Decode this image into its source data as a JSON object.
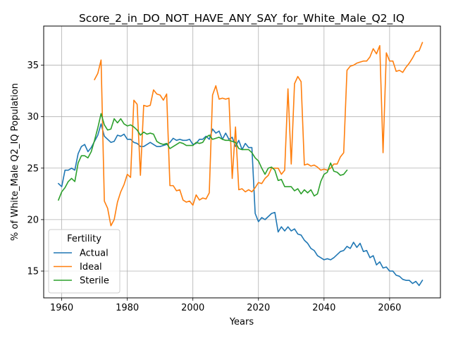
{
  "chart_data": {
    "type": "line",
    "title": "Score_2_in_DO_NOT_HAVE_ANY_SAY_for_White_Male_Q2_IQ",
    "xlabel": "Years",
    "ylabel": "% of White_Male Q2_IQ Population",
    "xlim": [
      1954.5,
      2075.5
    ],
    "ylim": [
      12.4,
      38.8
    ],
    "xticks": [
      1960,
      1980,
      2000,
      2020,
      2040,
      2060
    ],
    "yticks": [
      15,
      20,
      25,
      30,
      35
    ],
    "grid": true,
    "legend": {
      "title": "Fertility",
      "placement": "lower-left"
    },
    "series": [
      {
        "name": "Actual",
        "color": "#1f77b4",
        "x": [
          1959,
          1960,
          1961,
          1962,
          1963,
          1964,
          1965,
          1966,
          1967,
          1968,
          1969,
          1970,
          1971,
          1972,
          1973,
          1974,
          1975,
          1976,
          1977,
          1978,
          1979,
          1980,
          1981,
          1982,
          1983,
          1984,
          1985,
          1986,
          1987,
          1988,
          1989,
          1990,
          1991,
          1992,
          1993,
          1994,
          1995,
          1996,
          1997,
          1998,
          1999,
          2000,
          2001,
          2002,
          2003,
          2004,
          2005,
          2006,
          2007,
          2008,
          2009,
          2010,
          2011,
          2012,
          2013,
          2014,
          2015,
          2016,
          2017,
          2018,
          2019,
          2020,
          2021,
          2022,
          2023,
          2024,
          2025,
          2026,
          2027,
          2028,
          2029,
          2030,
          2031,
          2032,
          2033,
          2034,
          2035,
          2036,
          2037,
          2038,
          2039,
          2040,
          2041,
          2042,
          2043,
          2044,
          2045,
          2046,
          2047,
          2048,
          2049,
          2050,
          2051,
          2052,
          2053,
          2054,
          2055,
          2056,
          2057,
          2058,
          2059,
          2060,
          2061,
          2062,
          2063,
          2064,
          2065,
          2066,
          2067,
          2068,
          2069,
          2070
        ],
        "y": [
          23.5,
          23.2,
          24.8,
          24.8,
          25.0,
          24.8,
          26.4,
          27.1,
          27.3,
          26.6,
          27.0,
          27.6,
          28.2,
          29.3,
          28.1,
          27.8,
          27.5,
          27.6,
          28.2,
          28.1,
          28.3,
          27.8,
          27.8,
          27.5,
          27.4,
          27.1,
          27.1,
          27.3,
          27.5,
          27.3,
          27.1,
          27.1,
          27.2,
          27.3,
          27.5,
          27.9,
          27.7,
          27.8,
          27.7,
          27.7,
          27.8,
          27.3,
          27.4,
          27.8,
          27.8,
          28.1,
          27.8,
          28.8,
          28.4,
          28.6,
          27.8,
          28.4,
          27.8,
          28.0,
          27.1,
          27.7,
          26.8,
          27.4,
          27.0,
          27.0,
          20.6,
          19.8,
          20.2,
          20.0,
          20.3,
          20.6,
          20.7,
          18.8,
          19.3,
          18.9,
          19.3,
          18.9,
          19.1,
          18.6,
          18.5,
          18.0,
          17.7,
          17.2,
          17.0,
          16.5,
          16.3,
          16.1,
          16.2,
          16.1,
          16.3,
          16.6,
          16.9,
          17.0,
          17.4,
          17.2,
          17.8,
          17.3,
          17.7,
          16.9,
          17.0,
          16.3,
          16.5,
          15.6,
          15.9,
          15.3,
          15.4,
          15.0,
          15.0,
          14.6,
          14.5,
          14.2,
          14.1,
          14.1,
          13.8,
          14.0,
          13.6,
          14.1
        ]
      },
      {
        "name": "Ideal",
        "color": "#ff7f0e",
        "x": [
          1970,
          1971,
          1972,
          1973,
          1974,
          1975,
          1976,
          1977,
          1978,
          1979,
          1980,
          1981,
          1982,
          1983,
          1984,
          1985,
          1986,
          1987,
          1988,
          1989,
          1990,
          1991,
          1992,
          1993,
          1994,
          1995,
          1996,
          1997,
          1998,
          1999,
          2000,
          2001,
          2002,
          2003,
          2004,
          2005,
          2006,
          2007,
          2008,
          2009,
          2010,
          2011,
          2012,
          2013,
          2014,
          2015,
          2016,
          2017,
          2018,
          2019,
          2020,
          2021,
          2022,
          2023,
          2024,
          2025,
          2026,
          2027,
          2028,
          2029,
          2030,
          2031,
          2032,
          2033,
          2034,
          2035,
          2036,
          2037,
          2038,
          2039,
          2040,
          2041,
          2042,
          2043,
          2044,
          2045,
          2046,
          2047,
          2048,
          2049,
          2050,
          2051,
          2052,
          2053,
          2054,
          2055,
          2056,
          2057,
          2058,
          2059,
          2060,
          2061,
          2062,
          2063,
          2064,
          2065,
          2066,
          2067,
          2068,
          2069,
          2070
        ],
        "y": [
          33.6,
          34.2,
          35.5,
          21.8,
          21.1,
          19.4,
          20.0,
          21.7,
          22.7,
          23.4,
          24.4,
          24.1,
          31.6,
          31.2,
          24.3,
          31.1,
          31.0,
          31.1,
          32.6,
          32.2,
          32.1,
          31.6,
          32.2,
          23.3,
          23.3,
          22.8,
          22.9,
          21.9,
          21.7,
          21.8,
          21.4,
          22.4,
          21.9,
          22.1,
          22.0,
          22.6,
          32.1,
          33.0,
          31.7,
          31.8,
          31.7,
          31.8,
          24.0,
          29.0,
          22.9,
          23.0,
          22.7,
          22.9,
          22.7,
          23.1,
          23.6,
          23.5,
          24.0,
          24.3,
          25.0,
          25.0,
          25.0,
          24.4,
          24.8,
          32.7,
          25.4,
          33.2,
          33.9,
          33.4,
          25.3,
          25.4,
          25.2,
          25.3,
          25.1,
          24.8,
          24.9,
          24.8,
          25.0,
          25.4,
          25.4,
          26.1,
          26.5,
          34.5,
          34.9,
          35.0,
          35.2,
          35.3,
          35.4,
          35.4,
          35.8,
          36.6,
          36.1,
          36.9,
          26.5,
          36.2,
          35.4,
          35.4,
          34.4,
          34.5,
          34.3,
          34.8,
          35.2,
          35.7,
          36.3,
          36.4,
          37.2
        ]
      },
      {
        "name": "Sterile",
        "color": "#2ca02c",
        "x": [
          1959,
          1960,
          1961,
          1962,
          1963,
          1964,
          1965,
          1966,
          1967,
          1968,
          1969,
          1970,
          1971,
          1972,
          1973,
          1974,
          1975,
          1976,
          1977,
          1978,
          1979,
          1980,
          1981,
          1982,
          1983,
          1984,
          1985,
          1986,
          1987,
          1988,
          1989,
          1990,
          1991,
          1992,
          1993,
          1994,
          1995,
          1996,
          1997,
          1998,
          1999,
          2000,
          2001,
          2002,
          2003,
          2004,
          2005,
          2006,
          2007,
          2008,
          2009,
          2010,
          2011,
          2012,
          2013,
          2014,
          2015,
          2016,
          2017,
          2018,
          2019,
          2020,
          2021,
          2022,
          2023,
          2024,
          2025,
          2026,
          2027,
          2028,
          2029,
          2030,
          2031,
          2032,
          2033,
          2034,
          2035,
          2036,
          2037,
          2038,
          2039,
          2040,
          2041,
          2042,
          2043,
          2044,
          2045,
          2046,
          2047
        ],
        "y": [
          21.9,
          22.7,
          23.1,
          23.7,
          24.0,
          23.7,
          25.5,
          26.2,
          26.2,
          26.0,
          26.6,
          27.7,
          28.9,
          30.3,
          29.2,
          28.7,
          28.8,
          29.8,
          29.4,
          29.8,
          29.3,
          29.1,
          29.2,
          29.0,
          28.7,
          28.2,
          28.5,
          28.3,
          28.4,
          28.3,
          27.6,
          27.4,
          27.3,
          27.4,
          26.9,
          27.1,
          27.3,
          27.5,
          27.4,
          27.2,
          27.2,
          27.2,
          27.5,
          27.4,
          27.5,
          28.0,
          28.2,
          27.8,
          27.9,
          28.0,
          27.8,
          27.7,
          27.7,
          27.6,
          27.5,
          26.9,
          26.8,
          26.8,
          26.8,
          26.5,
          26.0,
          25.7,
          25.0,
          24.4,
          25.0,
          25.1,
          24.8,
          23.8,
          23.9,
          23.2,
          23.2,
          23.2,
          22.8,
          23.0,
          22.5,
          22.9,
          22.6,
          22.9,
          22.3,
          22.5,
          23.7,
          24.4,
          24.6,
          25.5,
          24.7,
          24.6,
          24.3,
          24.4,
          24.8
        ]
      }
    ]
  }
}
